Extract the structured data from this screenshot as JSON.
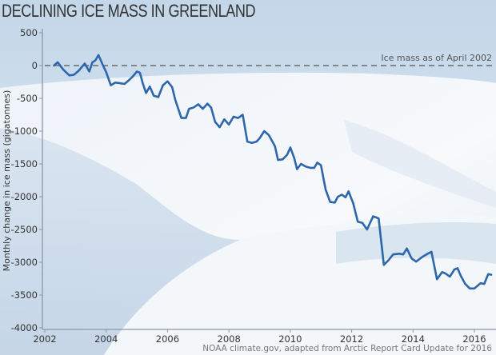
{
  "colors": {
    "line": "#2e66ad",
    "axis": "#8a96a6",
    "baseline": "#555555",
    "sky": "#c9dcec",
    "snow": "#eef3f8"
  },
  "chart_data": {
    "type": "line",
    "title": "DECLINING ICE MASS IN GREENLAND",
    "xlabel": "",
    "ylabel": "Monthly change in ice mass (gigatonnes)",
    "xlim": [
      2002,
      2016.75
    ],
    "ylim": [
      -4000,
      500
    ],
    "x_ticks": [
      2002,
      2004,
      2006,
      2008,
      2010,
      2012,
      2014,
      2016
    ],
    "x_tick_labels": [
      "2002",
      "2004",
      "2006",
      "2008",
      "2010",
      "2012",
      "2014",
      "2016"
    ],
    "y_ticks": [
      500,
      0,
      -500,
      -1000,
      -1500,
      -2000,
      -2500,
      -3000,
      -3500,
      -4000
    ],
    "y_tick_labels": [
      "500",
      "0",
      "-500",
      "-1000",
      "-1500",
      "-2000",
      "-2500",
      "-3000",
      "-3500",
      "-4000"
    ],
    "grid": false,
    "reference_line": {
      "y": 0,
      "label": "Ice mass as of April 2002"
    },
    "credit": "NOAA climate.gov, adapted from Arctic Report Card Update for 2016",
    "series": [
      {
        "name": "Ice mass",
        "x": [
          2002.3,
          2002.42,
          2002.6,
          2002.8,
          2002.95,
          2003.1,
          2003.3,
          2003.45,
          2003.55,
          2003.65,
          2003.75,
          2003.88,
          2004.0,
          2004.15,
          2004.3,
          2004.45,
          2004.6,
          2004.75,
          2004.88,
          2005.0,
          2005.1,
          2005.2,
          2005.3,
          2005.42,
          2005.55,
          2005.7,
          2005.85,
          2006.0,
          2006.15,
          2006.25,
          2006.45,
          2006.6,
          2006.7,
          2006.85,
          2007.0,
          2007.15,
          2007.3,
          2007.42,
          2007.55,
          2007.7,
          2007.85,
          2008.0,
          2008.15,
          2008.3,
          2008.45,
          2008.6,
          2008.75,
          2008.9,
          2009.0,
          2009.15,
          2009.3,
          2009.5,
          2009.6,
          2009.75,
          2009.9,
          2010.0,
          2010.12,
          2010.22,
          2010.35,
          2010.5,
          2010.65,
          2010.78,
          2010.88,
          2011.0,
          2011.15,
          2011.3,
          2011.45,
          2011.55,
          2011.68,
          2011.8,
          2011.9,
          2012.05,
          2012.2,
          2012.35,
          2012.5,
          2012.7,
          2012.88,
          2013.05,
          2013.2,
          2013.35,
          2013.55,
          2013.68,
          2013.8,
          2013.95,
          2014.1,
          2014.3,
          2014.48,
          2014.6,
          2014.78,
          2014.95,
          2015.05,
          2015.2,
          2015.35,
          2015.45,
          2015.55,
          2015.7,
          2015.85,
          2016.0,
          2016.2,
          2016.32,
          2016.45,
          2016.55
        ],
        "values": [
          0,
          50,
          -60,
          -150,
          -140,
          -80,
          30,
          -90,
          50,
          80,
          160,
          20,
          -100,
          -300,
          -260,
          -270,
          -280,
          -220,
          -160,
          -90,
          -110,
          -280,
          -420,
          -320,
          -460,
          -480,
          -300,
          -240,
          -330,
          -520,
          -800,
          -800,
          -660,
          -640,
          -590,
          -660,
          -580,
          -640,
          -860,
          -940,
          -820,
          -900,
          -780,
          -800,
          -750,
          -1160,
          -1180,
          -1160,
          -1110,
          -1000,
          -1060,
          -1230,
          -1440,
          -1430,
          -1360,
          -1250,
          -1400,
          -1580,
          -1500,
          -1540,
          -1560,
          -1560,
          -1480,
          -1520,
          -1890,
          -2080,
          -2090,
          -2000,
          -1970,
          -2010,
          -1920,
          -2100,
          -2380,
          -2400,
          -2500,
          -2300,
          -2330,
          -3040,
          -2970,
          -2880,
          -2870,
          -2880,
          -2790,
          -2940,
          -2990,
          -2920,
          -2870,
          -2840,
          -3260,
          -3150,
          -3170,
          -3220,
          -3110,
          -3090,
          -3200,
          -3330,
          -3400,
          -3400,
          -3320,
          -3330,
          -3180,
          -3190
        ]
      }
    ]
  }
}
